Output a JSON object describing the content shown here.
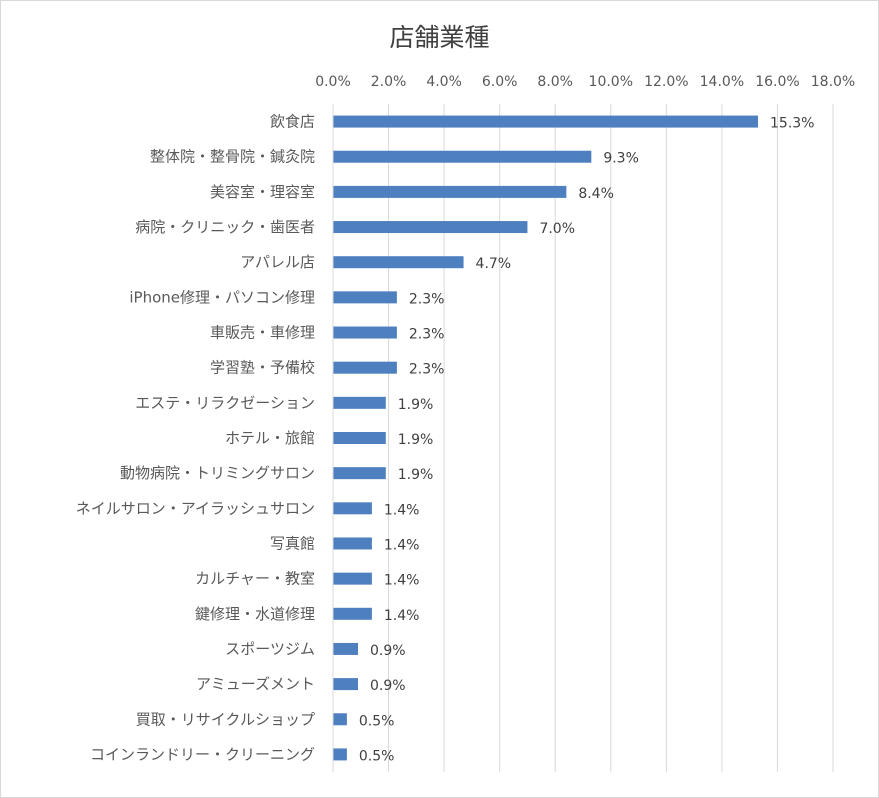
{
  "chart_data": {
    "type": "bar",
    "orientation": "horizontal",
    "title": "店舗業種",
    "xlabel": "",
    "ylabel": "",
    "xlim": [
      0,
      18
    ],
    "x_ticks": [
      "0.0%",
      "2.0%",
      "4.0%",
      "6.0%",
      "8.0%",
      "10.0%",
      "12.0%",
      "14.0%",
      "16.0%",
      "18.0%"
    ],
    "x_axis_position": "top",
    "grid": true,
    "bar_color": "#4e7fbf",
    "categories": [
      "飲食店",
      "整体院・整骨院・鍼灸院",
      "美容室・理容室",
      "病院・クリニック・歯医者",
      "アパレル店",
      "iPhone修理・パソコン修理",
      "車販売・車修理",
      "学習塾・予備校",
      "エステ・リラクゼーション",
      "ホテル・旅館",
      "動物病院・トリミングサロン",
      "ネイルサロン・アイラッシュサロン",
      "写真館",
      "カルチャー・教室",
      "鍵修理・水道修理",
      "スポーツジム",
      "アミューズメント",
      "買取・リサイクルショップ",
      "コインランドリー・クリーニング"
    ],
    "values": [
      15.3,
      9.3,
      8.4,
      7.0,
      4.7,
      2.3,
      2.3,
      2.3,
      1.9,
      1.9,
      1.9,
      1.4,
      1.4,
      1.4,
      1.4,
      0.9,
      0.9,
      0.5,
      0.5
    ],
    "data_labels": [
      "15.3%",
      "9.3%",
      "8.4%",
      "7.0%",
      "4.7%",
      "2.3%",
      "2.3%",
      "2.3%",
      "1.9%",
      "1.9%",
      "1.9%",
      "1.4%",
      "1.4%",
      "1.4%",
      "1.4%",
      "0.9%",
      "0.9%",
      "0.5%",
      "0.5%"
    ]
  }
}
